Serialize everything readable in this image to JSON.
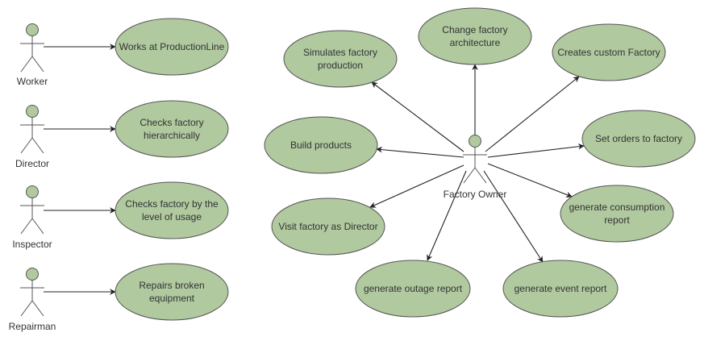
{
  "colors": {
    "usecase_fill": "#b0c99f",
    "outline": "#555555",
    "arrow": "#222222",
    "text": "#333333",
    "background": "#ffffff"
  },
  "actors": {
    "worker": "Worker",
    "director": "Director",
    "inspector": "Inspector",
    "repairman": "Repairman",
    "factory_owner": "Factory Owner"
  },
  "use_cases": {
    "works_at_production_line": [
      "Works at ProductionLine"
    ],
    "checks_factory_hierarchically": [
      "Checks factory",
      "hierarchically"
    ],
    "checks_factory_by_usage": [
      "Checks factory by the",
      "level of usage"
    ],
    "repairs_broken_equipment": [
      "Repairs broken",
      "equipment"
    ],
    "simulates_factory_production": [
      "Simulates factory",
      "production"
    ],
    "change_factory_architecture": [
      "Change factory",
      "architecture"
    ],
    "creates_custom_factory": [
      "Creates custom Factory"
    ],
    "build_products": [
      "Build products"
    ],
    "set_orders_to_factory": [
      "Set orders to factory"
    ],
    "visit_factory_as_director": [
      "Visit factory as Director"
    ],
    "generate_consumption_report": [
      "generate consumption",
      "report"
    ],
    "generate_outage_report": [
      "generate outage report"
    ],
    "generate_event_report": [
      "generate event report"
    ]
  },
  "associations": [
    {
      "from": "worker",
      "to": "works_at_production_line"
    },
    {
      "from": "director",
      "to": "checks_factory_hierarchically"
    },
    {
      "from": "inspector",
      "to": "checks_factory_by_usage"
    },
    {
      "from": "repairman",
      "to": "repairs_broken_equipment"
    },
    {
      "from": "factory_owner",
      "to": "simulates_factory_production"
    },
    {
      "from": "factory_owner",
      "to": "change_factory_architecture"
    },
    {
      "from": "factory_owner",
      "to": "creates_custom_factory"
    },
    {
      "from": "factory_owner",
      "to": "build_products"
    },
    {
      "from": "factory_owner",
      "to": "set_orders_to_factory"
    },
    {
      "from": "factory_owner",
      "to": "visit_factory_as_director"
    },
    {
      "from": "factory_owner",
      "to": "generate_consumption_report"
    },
    {
      "from": "factory_owner",
      "to": "generate_outage_report"
    },
    {
      "from": "factory_owner",
      "to": "generate_event_report"
    }
  ]
}
